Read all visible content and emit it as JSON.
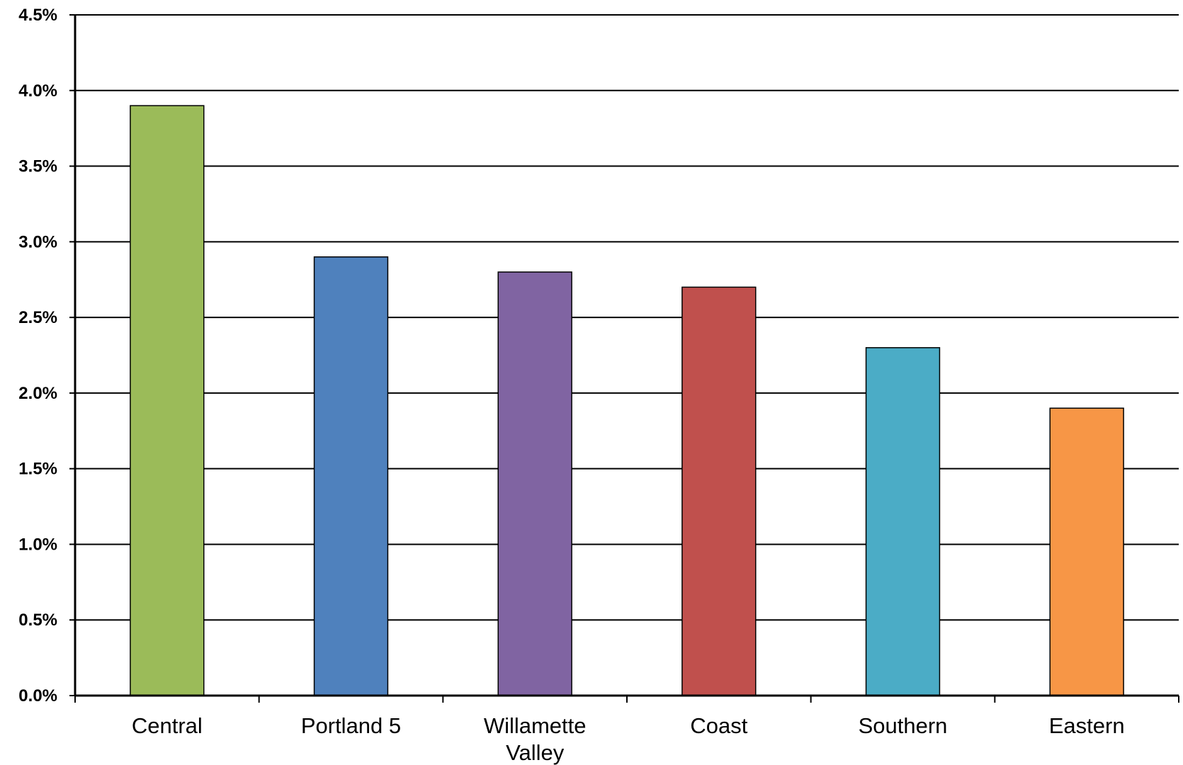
{
  "chart_data": {
    "type": "bar",
    "title": "",
    "xlabel": "",
    "ylabel": "",
    "categories": [
      "Central",
      "Portland 5",
      "Willamette Valley",
      "Coast",
      "Southern",
      "Eastern"
    ],
    "category_lines": [
      [
        "Central"
      ],
      [
        "Portland 5"
      ],
      [
        "Willamette",
        "Valley"
      ],
      [
        "Coast"
      ],
      [
        "Southern"
      ],
      [
        "Eastern"
      ]
    ],
    "values": [
      3.9,
      2.9,
      2.8,
      2.7,
      2.3,
      1.9
    ],
    "colors": [
      "#9BBB59",
      "#4F81BD",
      "#8064A2",
      "#C0504D",
      "#4BACC6",
      "#F79646"
    ],
    "ylim": [
      0,
      4.5
    ],
    "yticks": [
      0.0,
      0.5,
      1.0,
      1.5,
      2.0,
      2.5,
      3.0,
      3.5,
      4.0,
      4.5
    ],
    "ytick_labels": [
      "0.0%",
      "0.5%",
      "1.0%",
      "1.5%",
      "2.0%",
      "2.5%",
      "3.0%",
      "3.5%",
      "4.0%",
      "4.5%"
    ],
    "grid": true,
    "legend": "none"
  }
}
